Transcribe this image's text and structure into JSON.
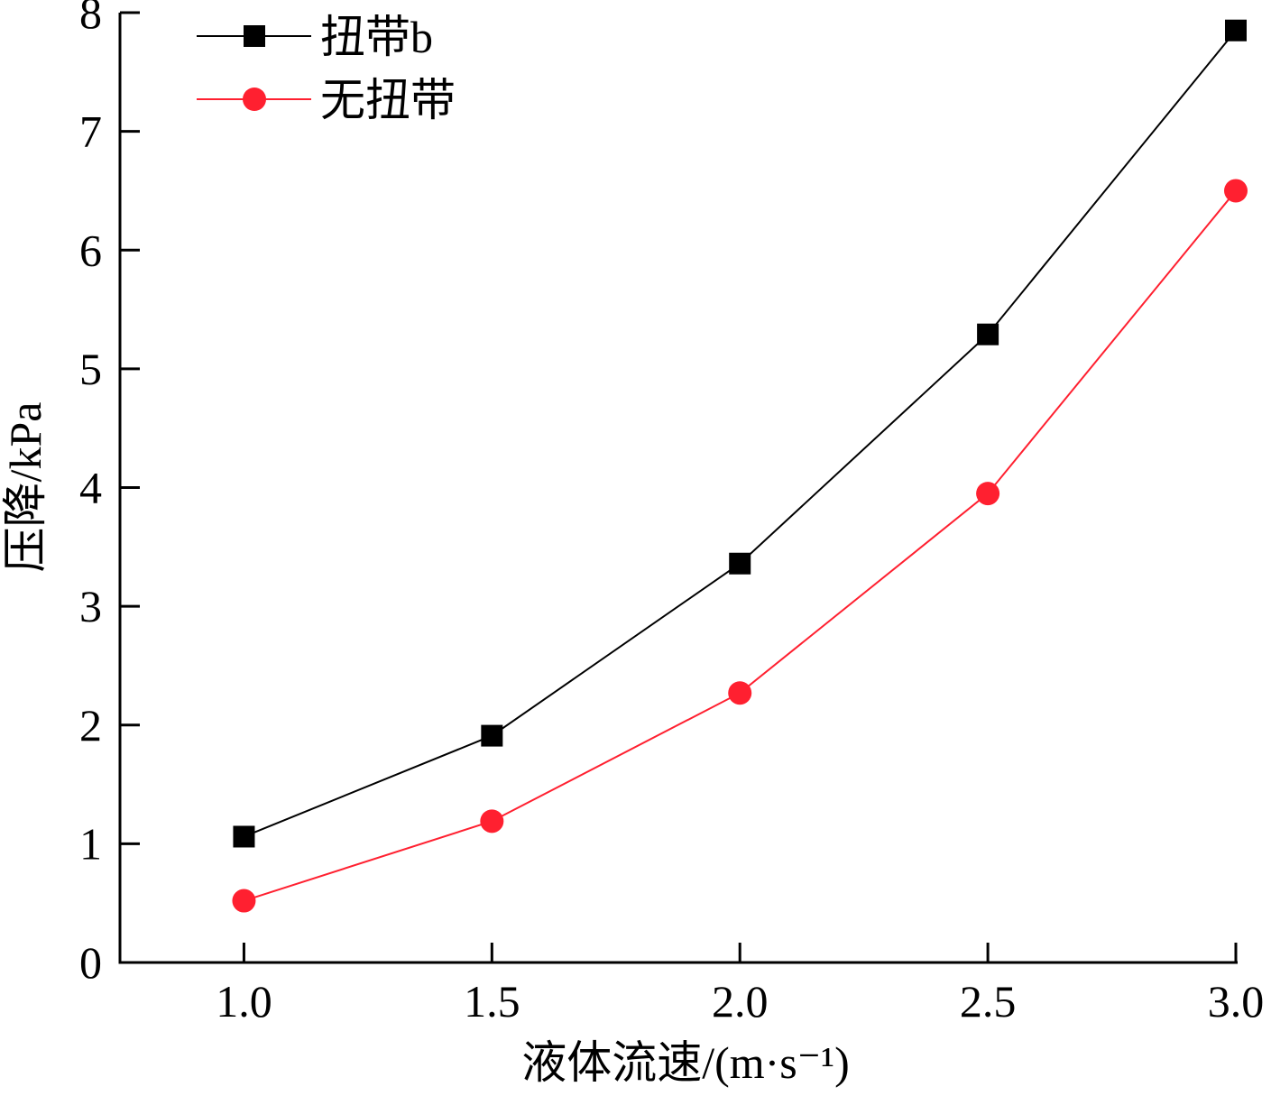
{
  "chart_data": {
    "type": "line",
    "x": [
      1.0,
      1.5,
      2.0,
      2.5,
      3.0
    ],
    "series": [
      {
        "name": "扭带b",
        "color": "#000000",
        "marker": "square",
        "values": [
          1.06,
          1.91,
          3.36,
          5.29,
          7.85
        ]
      },
      {
        "name": "无扭带",
        "color": "#ff2030",
        "marker": "circle",
        "values": [
          0.52,
          1.19,
          2.27,
          3.95,
          6.5
        ]
      }
    ],
    "xlabel": "液体流速/(m·s⁻¹)",
    "ylabel": "压降/kPa",
    "xlim": [
      0.75,
      3.0
    ],
    "ylim": [
      0,
      8
    ],
    "xticks": [
      {
        "value": 1.0,
        "label": "1.0"
      },
      {
        "value": 1.5,
        "label": "1.5"
      },
      {
        "value": 2.0,
        "label": "2.0"
      },
      {
        "value": 2.5,
        "label": "2.5"
      },
      {
        "value": 3.0,
        "label": "3.0"
      }
    ],
    "yticks": [
      0,
      1,
      2,
      3,
      4,
      5,
      6,
      7,
      8
    ],
    "legend": "upper left"
  }
}
